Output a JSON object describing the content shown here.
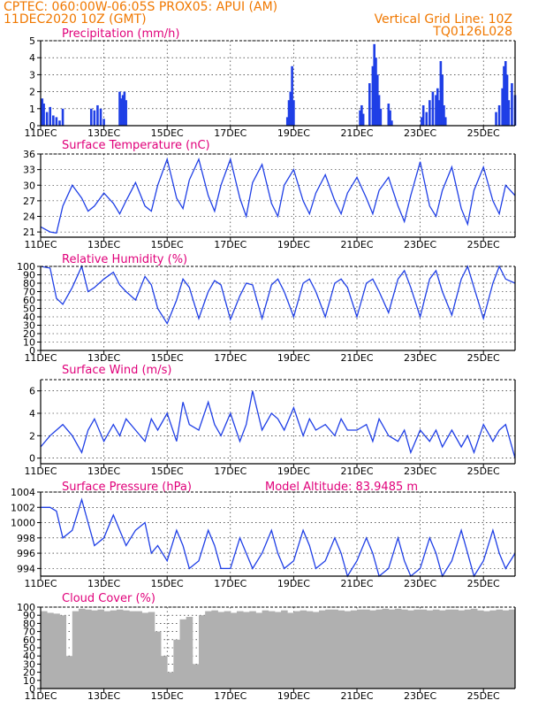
{
  "header": {
    "line1": "CPTEC:   060:00W-06:05S   PROX05: APUI (AM)",
    "line2": "11DEC2020  10Z (GMT)",
    "grid_note": "Vertical Grid Line: 10Z",
    "code": "TQ0126L028"
  },
  "x_axis": {
    "ticks": [
      "11DEC",
      "13DEC",
      "15DEC",
      "17DEC",
      "19DEC",
      "21DEC",
      "23DEC",
      "25DEC"
    ],
    "start_day": 11,
    "end_day": 26,
    "year_stub": "202"
  },
  "colors": {
    "series": "#1f3fe6",
    "cloud": "#b0b0b0",
    "header": "#f07800",
    "title": "#e0007a"
  },
  "panels": {
    "precip": {
      "title": "Precipitation (mm/h)"
    },
    "temp": {
      "title": "Surface Temperature (nC)"
    },
    "rh": {
      "title": "Relative Humidity (%)"
    },
    "wind": {
      "title": "Surface Wind (m/s)"
    },
    "pres": {
      "title": "Surface Pressure (hPa)",
      "altitude": "Model Altitude: 83.9485 m"
    },
    "cloud": {
      "title": "Cloud Cover (%)"
    }
  },
  "chart_data": [
    {
      "type": "bar",
      "name": "precip",
      "title": "Precipitation (mm/h)",
      "ylim": [
        0,
        5
      ],
      "yticks": [
        0,
        1,
        2,
        3,
        4,
        5
      ],
      "x": [
        11.05,
        11.1,
        11.2,
        11.3,
        11.4,
        11.5,
        11.6,
        11.7,
        12.6,
        12.7,
        12.8,
        12.9,
        13.0,
        13.5,
        13.55,
        13.6,
        13.65,
        13.7,
        18.8,
        18.85,
        18.9,
        18.95,
        19.0,
        21.1,
        21.15,
        21.2,
        21.4,
        21.5,
        21.55,
        21.6,
        21.65,
        21.7,
        21.75,
        22.0,
        22.05,
        22.1,
        23.05,
        23.1,
        23.2,
        23.3,
        23.4,
        23.5,
        23.55,
        23.6,
        23.65,
        23.7,
        23.75,
        23.8,
        25.4,
        25.5,
        25.6,
        25.65,
        25.7,
        25.75,
        25.8,
        25.9,
        26.0
      ],
      "values": [
        1.6,
        1.3,
        0.8,
        1.1,
        0.6,
        0.5,
        0.3,
        1.0,
        1.0,
        0.9,
        1.2,
        1.0,
        0.4,
        2.0,
        1.6,
        1.8,
        2.0,
        1.5,
        0.5,
        1.5,
        2.0,
        3.5,
        1.5,
        0.9,
        1.2,
        0.7,
        2.5,
        3.5,
        4.8,
        4.0,
        3.0,
        1.8,
        1.0,
        1.3,
        0.9,
        0.3,
        0.5,
        1.2,
        0.8,
        1.5,
        2.0,
        1.8,
        2.2,
        1.5,
        3.8,
        3.0,
        1.2,
        0.5,
        0.8,
        1.2,
        2.2,
        3.5,
        3.8,
        3.0,
        1.5,
        2.5,
        1.8
      ]
    },
    {
      "type": "line",
      "name": "temp",
      "title": "Surface Temperature (nC)",
      "ylim": [
        20,
        36
      ],
      "yticks": [
        21,
        24,
        27,
        30,
        33,
        36
      ],
      "x": [
        11.0,
        11.3,
        11.5,
        11.7,
        12.0,
        12.3,
        12.5,
        12.7,
        13.0,
        13.3,
        13.5,
        13.7,
        14.0,
        14.3,
        14.5,
        14.7,
        15.0,
        15.3,
        15.5,
        15.7,
        16.0,
        16.3,
        16.5,
        16.7,
        17.0,
        17.3,
        17.5,
        17.7,
        18.0,
        18.3,
        18.5,
        18.7,
        19.0,
        19.3,
        19.5,
        19.7,
        20.0,
        20.3,
        20.5,
        20.7,
        21.0,
        21.3,
        21.5,
        21.7,
        22.0,
        22.3,
        22.5,
        22.7,
        23.0,
        23.3,
        23.5,
        23.7,
        24.0,
        24.3,
        24.5,
        24.7,
        25.0,
        25.3,
        25.5,
        25.7,
        26.0
      ],
      "values": [
        22.0,
        21.0,
        20.8,
        26.0,
        30.0,
        27.5,
        25.0,
        26.0,
        28.5,
        26.5,
        24.5,
        27.0,
        30.5,
        26.0,
        25.0,
        30.0,
        35.0,
        27.5,
        25.5,
        31.0,
        35.0,
        28.0,
        25.0,
        30.0,
        35.0,
        27.5,
        24.0,
        30.5,
        34.0,
        26.5,
        24.0,
        30.0,
        33.0,
        27.0,
        24.5,
        28.5,
        32.0,
        27.0,
        24.5,
        28.5,
        31.5,
        27.5,
        24.5,
        29.0,
        31.5,
        26.0,
        23.0,
        28.0,
        34.5,
        26.0,
        24.0,
        29.0,
        33.5,
        25.5,
        22.5,
        29.0,
        33.5,
        27.0,
        24.5,
        30.0,
        28.0
      ]
    },
    {
      "type": "line",
      "name": "rh",
      "title": "Relative Humidity (%)",
      "ylim": [
        0,
        100
      ],
      "yticks": [
        0,
        10,
        20,
        30,
        40,
        50,
        60,
        70,
        80,
        90,
        100
      ],
      "x": [
        11.0,
        11.3,
        11.5,
        11.7,
        12.0,
        12.3,
        12.5,
        12.7,
        13.0,
        13.3,
        13.5,
        13.7,
        14.0,
        14.3,
        14.5,
        14.7,
        15.0,
        15.3,
        15.5,
        15.7,
        16.0,
        16.3,
        16.5,
        16.7,
        17.0,
        17.3,
        17.5,
        17.7,
        18.0,
        18.3,
        18.5,
        18.7,
        19.0,
        19.3,
        19.5,
        19.7,
        20.0,
        20.3,
        20.5,
        20.7,
        21.0,
        21.3,
        21.5,
        21.7,
        22.0,
        22.3,
        22.5,
        22.7,
        23.0,
        23.3,
        23.5,
        23.7,
        24.0,
        24.3,
        24.5,
        24.7,
        25.0,
        25.3,
        25.5,
        25.7,
        26.0
      ],
      "values": [
        100.0,
        98.0,
        62.0,
        55.0,
        75.0,
        100.0,
        70.0,
        75.0,
        85.0,
        93.0,
        78.0,
        70.0,
        60.0,
        88.0,
        78.0,
        50.0,
        32.0,
        60.0,
        85.0,
        75.0,
        38.0,
        70.0,
        83.0,
        78.0,
        37.0,
        65.0,
        80.0,
        78.0,
        38.0,
        78.0,
        85.0,
        70.0,
        40.0,
        80.0,
        85.0,
        70.0,
        40.0,
        80.0,
        85.0,
        75.0,
        40.0,
        80.0,
        85.0,
        70.0,
        45.0,
        85.0,
        95.0,
        75.0,
        40.0,
        85.0,
        95.0,
        70.0,
        42.0,
        85.0,
        100.0,
        75.0,
        38.0,
        80.0,
        100.0,
        85.0,
        80.0
      ]
    },
    {
      "type": "line",
      "name": "wind",
      "title": "Surface Wind (m/s)",
      "ylim": [
        -0.5,
        7
      ],
      "yticks": [
        0,
        2,
        4,
        6
      ],
      "x": [
        11.0,
        11.3,
        11.5,
        11.7,
        12.0,
        12.3,
        12.5,
        12.7,
        13.0,
        13.3,
        13.5,
        13.7,
        14.0,
        14.3,
        14.5,
        14.7,
        15.0,
        15.3,
        15.5,
        15.7,
        16.0,
        16.3,
        16.5,
        16.7,
        17.0,
        17.3,
        17.5,
        17.7,
        18.0,
        18.3,
        18.5,
        18.7,
        19.0,
        19.3,
        19.5,
        19.7,
        20.0,
        20.3,
        20.5,
        20.7,
        21.0,
        21.3,
        21.5,
        21.7,
        22.0,
        22.3,
        22.5,
        22.7,
        23.0,
        23.3,
        23.5,
        23.7,
        24.0,
        24.3,
        24.5,
        24.7,
        25.0,
        25.3,
        25.5,
        25.7,
        26.0
      ],
      "values": [
        1.0,
        2.0,
        2.5,
        3.0,
        2.0,
        0.5,
        2.5,
        3.5,
        1.5,
        3.0,
        2.0,
        3.5,
        2.5,
        1.5,
        3.5,
        2.5,
        4.0,
        1.5,
        5.0,
        3.0,
        2.5,
        5.0,
        3.0,
        2.0,
        4.0,
        1.5,
        3.0,
        6.0,
        2.5,
        4.0,
        3.5,
        2.5,
        4.5,
        2.0,
        3.5,
        2.5,
        3.0,
        2.0,
        3.5,
        2.5,
        2.5,
        3.0,
        1.5,
        3.5,
        2.0,
        1.5,
        2.5,
        0.5,
        2.5,
        1.5,
        2.5,
        1.0,
        2.5,
        1.0,
        2.0,
        0.5,
        3.0,
        1.5,
        2.5,
        3.0,
        0.0
      ]
    },
    {
      "type": "line",
      "name": "pres",
      "title": "Surface Pressure (hPa)",
      "ylim": [
        993,
        1004
      ],
      "yticks": [
        994,
        996,
        998,
        1000,
        1002,
        1004
      ],
      "x": [
        11.0,
        11.3,
        11.5,
        11.7,
        12.0,
        12.3,
        12.5,
        12.7,
        13.0,
        13.3,
        13.5,
        13.7,
        14.0,
        14.3,
        14.5,
        14.7,
        15.0,
        15.3,
        15.5,
        15.7,
        16.0,
        16.3,
        16.5,
        16.7,
        17.0,
        17.3,
        17.5,
        17.7,
        18.0,
        18.3,
        18.5,
        18.7,
        19.0,
        19.3,
        19.5,
        19.7,
        20.0,
        20.3,
        20.5,
        20.7,
        21.0,
        21.3,
        21.5,
        21.7,
        22.0,
        22.3,
        22.5,
        22.7,
        23.0,
        23.3,
        23.5,
        23.7,
        24.0,
        24.3,
        24.5,
        24.7,
        25.0,
        25.3,
        25.5,
        25.7,
        26.0
      ],
      "values": [
        1002.0,
        1002.0,
        1001.5,
        998.0,
        999.0,
        1003.0,
        1000.0,
        997.0,
        998.0,
        1001.0,
        999.0,
        997.0,
        999.0,
        1000.0,
        996.0,
        997.0,
        995.0,
        999.0,
        997.0,
        994.0,
        995.0,
        999.0,
        997.0,
        994.0,
        994.0,
        998.0,
        996.0,
        994.0,
        996.0,
        999.0,
        996.0,
        994.0,
        995.0,
        999.0,
        997.0,
        994.0,
        995.0,
        998.0,
        996.0,
        993.0,
        995.0,
        998.0,
        996.0,
        993.0,
        994.0,
        998.0,
        995.0,
        993.0,
        994.0,
        998.0,
        996.0,
        993.0,
        995.0,
        999.0,
        996.0,
        993.0,
        995.0,
        999.0,
        996.0,
        994.0,
        996.0
      ]
    },
    {
      "type": "bar",
      "name": "cloud",
      "title": "Cloud Cover (%)",
      "ylim": [
        0,
        100
      ],
      "yticks": [
        0,
        10,
        20,
        30,
        40,
        50,
        60,
        70,
        80,
        90,
        100
      ],
      "x": [
        11.0,
        11.2,
        11.4,
        11.6,
        11.8,
        12.0,
        12.2,
        12.4,
        12.6,
        12.8,
        13.0,
        13.2,
        13.4,
        13.6,
        13.8,
        14.0,
        14.2,
        14.4,
        14.6,
        14.8,
        15.0,
        15.2,
        15.4,
        15.6,
        15.8,
        16.0,
        16.2,
        16.4,
        16.6,
        16.8,
        17.0,
        17.2,
        17.4,
        17.6,
        17.8,
        18.0,
        18.2,
        18.4,
        18.6,
        18.8,
        19.0,
        19.2,
        19.4,
        19.6,
        19.8,
        20.0,
        20.2,
        20.4,
        20.6,
        20.8,
        21.0,
        21.2,
        21.4,
        21.6,
        21.8,
        22.0,
        22.2,
        22.4,
        22.6,
        22.8,
        23.0,
        23.2,
        23.4,
        23.6,
        23.8,
        24.0,
        24.2,
        24.4,
        24.6,
        24.8,
        25.0,
        25.2,
        25.4,
        25.6,
        25.8
      ],
      "values": [
        95.0,
        93.0,
        92.0,
        90.0,
        40.0,
        95.0,
        98.0,
        97.0,
        96.0,
        97.0,
        95.0,
        96.0,
        97.0,
        96.0,
        95.0,
        95.0,
        93.0,
        94.0,
        70.0,
        40.0,
        20.0,
        60.0,
        85.0,
        88.0,
        30.0,
        90.0,
        95.0,
        96.0,
        94.0,
        95.0,
        93.0,
        95.0,
        94.0,
        95.0,
        93.0,
        96.0,
        95.0,
        94.0,
        96.0,
        93.0,
        95.0,
        96.0,
        95.0,
        94.0,
        96.0,
        97.0,
        97.0,
        96.0,
        95.0,
        96.0,
        97.0,
        97.0,
        96.0,
        97.0,
        98.0,
        97.0,
        98.0,
        97.0,
        96.0,
        97.0,
        97.0,
        96.0,
        97.0,
        96.0,
        97.0,
        97.0,
        96.0,
        97.0,
        98.0,
        96.0,
        95.0,
        96.0,
        97.0,
        96.0,
        97.0
      ]
    }
  ]
}
